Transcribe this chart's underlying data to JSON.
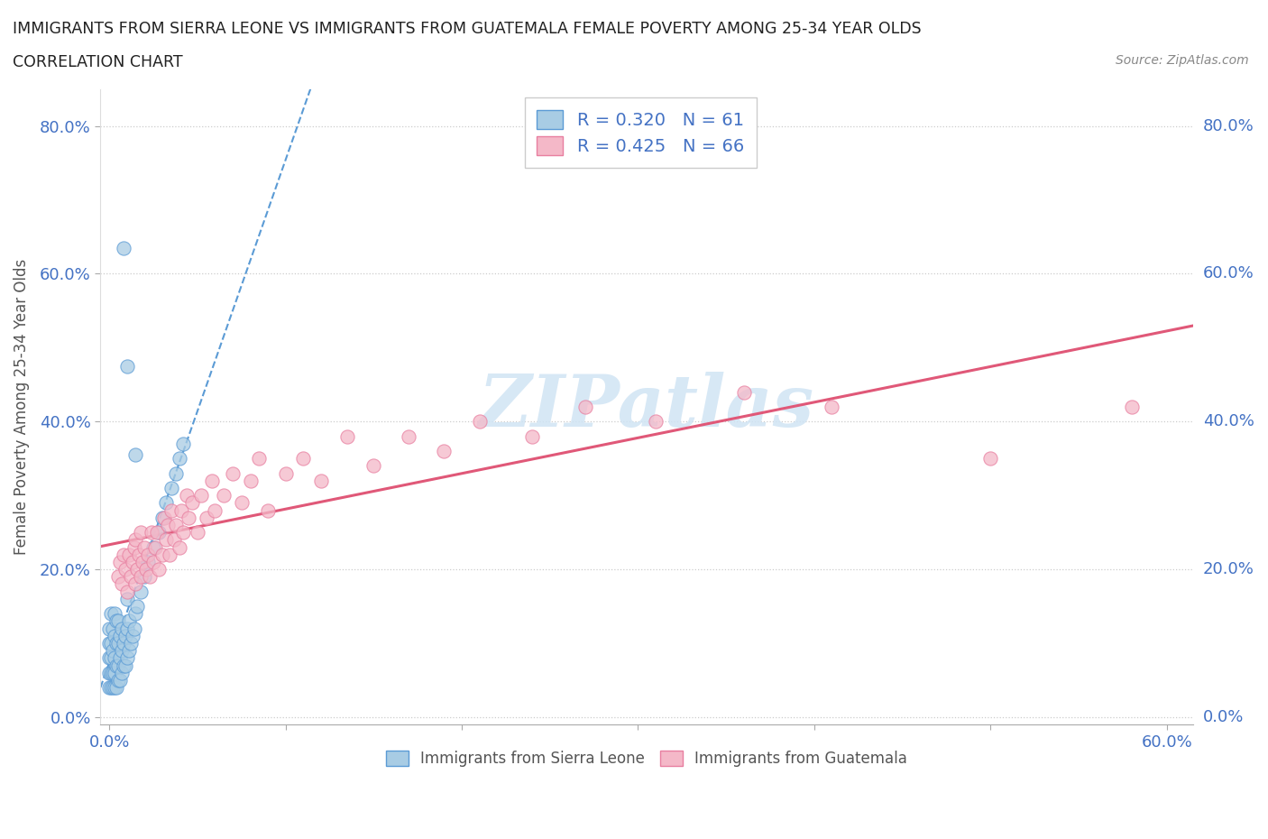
{
  "title_line1": "IMMIGRANTS FROM SIERRA LEONE VS IMMIGRANTS FROM GUATEMALA FEMALE POVERTY AMONG 25-34 YEAR OLDS",
  "title_line2": "CORRELATION CHART",
  "source_text": "Source: ZipAtlas.com",
  "ylabel": "Female Poverty Among 25-34 Year Olds",
  "xlim": [
    -0.005,
    0.615
  ],
  "ylim": [
    -0.01,
    0.85
  ],
  "x_tick_pos": [
    0.0,
    0.1,
    0.2,
    0.3,
    0.4,
    0.5,
    0.6
  ],
  "x_tick_labels": [
    "0.0%",
    "",
    "",
    "",
    "",
    "",
    "60.0%"
  ],
  "y_tick_pos": [
    0.0,
    0.2,
    0.4,
    0.6,
    0.8
  ],
  "y_tick_labels": [
    "0.0%",
    "20.0%",
    "40.0%",
    "60.0%",
    "80.0%"
  ],
  "sierra_leone_color": "#a8cce4",
  "sierra_leone_edge": "#5b9bd5",
  "guatemala_color": "#f4b8c8",
  "guatemala_edge": "#e87fa0",
  "sierra_leone_R": 0.32,
  "sierra_leone_N": 61,
  "guatemala_R": 0.425,
  "guatemala_N": 66,
  "sl_line_color": "#5b9bd5",
  "gt_line_color": "#e05878",
  "watermark_color": "#d0e4f4",
  "sl_x": [
    0.0,
    0.0,
    0.0,
    0.0,
    0.0,
    0.001,
    0.001,
    0.001,
    0.001,
    0.001,
    0.002,
    0.002,
    0.002,
    0.002,
    0.003,
    0.003,
    0.003,
    0.003,
    0.003,
    0.004,
    0.004,
    0.004,
    0.004,
    0.005,
    0.005,
    0.005,
    0.005,
    0.006,
    0.006,
    0.006,
    0.007,
    0.007,
    0.007,
    0.008,
    0.008,
    0.009,
    0.009,
    0.01,
    0.01,
    0.01,
    0.011,
    0.011,
    0.012,
    0.013,
    0.014,
    0.015,
    0.016,
    0.018,
    0.02,
    0.022,
    0.025,
    0.028,
    0.03,
    0.032,
    0.035,
    0.038,
    0.04,
    0.042,
    0.008,
    0.01,
    0.015
  ],
  "sl_y": [
    0.04,
    0.06,
    0.08,
    0.1,
    0.12,
    0.04,
    0.06,
    0.08,
    0.1,
    0.14,
    0.04,
    0.06,
    0.09,
    0.12,
    0.04,
    0.06,
    0.08,
    0.11,
    0.14,
    0.04,
    0.07,
    0.1,
    0.13,
    0.05,
    0.07,
    0.1,
    0.13,
    0.05,
    0.08,
    0.11,
    0.06,
    0.09,
    0.12,
    0.07,
    0.1,
    0.07,
    0.11,
    0.08,
    0.12,
    0.16,
    0.09,
    0.13,
    0.1,
    0.11,
    0.12,
    0.14,
    0.15,
    0.17,
    0.19,
    0.21,
    0.23,
    0.25,
    0.27,
    0.29,
    0.31,
    0.33,
    0.35,
    0.37,
    0.635,
    0.475,
    0.355
  ],
  "gt_x": [
    0.005,
    0.006,
    0.007,
    0.008,
    0.009,
    0.01,
    0.011,
    0.012,
    0.013,
    0.014,
    0.015,
    0.015,
    0.016,
    0.017,
    0.018,
    0.018,
    0.019,
    0.02,
    0.021,
    0.022,
    0.023,
    0.024,
    0.025,
    0.026,
    0.027,
    0.028,
    0.03,
    0.031,
    0.032,
    0.033,
    0.034,
    0.035,
    0.037,
    0.038,
    0.04,
    0.041,
    0.042,
    0.044,
    0.045,
    0.047,
    0.05,
    0.052,
    0.055,
    0.058,
    0.06,
    0.065,
    0.07,
    0.075,
    0.08,
    0.085,
    0.09,
    0.1,
    0.11,
    0.12,
    0.135,
    0.15,
    0.17,
    0.19,
    0.21,
    0.24,
    0.27,
    0.31,
    0.36,
    0.41,
    0.5,
    0.58
  ],
  "gt_y": [
    0.19,
    0.21,
    0.18,
    0.22,
    0.2,
    0.17,
    0.22,
    0.19,
    0.21,
    0.23,
    0.18,
    0.24,
    0.2,
    0.22,
    0.19,
    0.25,
    0.21,
    0.23,
    0.2,
    0.22,
    0.19,
    0.25,
    0.21,
    0.23,
    0.25,
    0.2,
    0.22,
    0.27,
    0.24,
    0.26,
    0.22,
    0.28,
    0.24,
    0.26,
    0.23,
    0.28,
    0.25,
    0.3,
    0.27,
    0.29,
    0.25,
    0.3,
    0.27,
    0.32,
    0.28,
    0.3,
    0.33,
    0.29,
    0.32,
    0.35,
    0.28,
    0.33,
    0.35,
    0.32,
    0.38,
    0.34,
    0.38,
    0.36,
    0.4,
    0.38,
    0.42,
    0.4,
    0.44,
    0.42,
    0.35,
    0.42
  ]
}
